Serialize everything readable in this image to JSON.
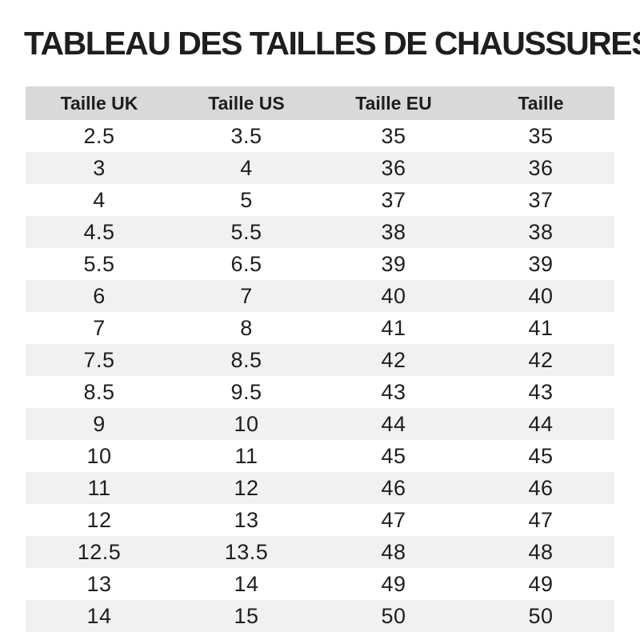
{
  "title": "TABLEAU DES TAILLES DE CHAUSSURES",
  "table": {
    "columns": [
      "Taille UK",
      "Taille US",
      "Taille EU",
      "Taille"
    ],
    "rows": [
      [
        "2.5",
        "3.5",
        "35",
        "35"
      ],
      [
        "3",
        "4",
        "36",
        "36"
      ],
      [
        "4",
        "5",
        "37",
        "37"
      ],
      [
        "4.5",
        "5.5",
        "38",
        "38"
      ],
      [
        "5.5",
        "6.5",
        "39",
        "39"
      ],
      [
        "6",
        "7",
        "40",
        "40"
      ],
      [
        "7",
        "8",
        "41",
        "41"
      ],
      [
        "7.5",
        "8.5",
        "42",
        "42"
      ],
      [
        "8.5",
        "9.5",
        "43",
        "43"
      ],
      [
        "9",
        "10",
        "44",
        "44"
      ],
      [
        "10",
        "11",
        "45",
        "45"
      ],
      [
        "11",
        "12",
        "46",
        "46"
      ],
      [
        "12",
        "13",
        "47",
        "47"
      ],
      [
        "12.5",
        "13.5",
        "48",
        "48"
      ],
      [
        "13",
        "14",
        "49",
        "49"
      ],
      [
        "14",
        "15",
        "50",
        "50"
      ]
    ]
  },
  "colors": {
    "background": "#ffffff",
    "header_bg": "#d9d9d9",
    "stripe_bg": "#f1f1f1",
    "text": "#1e1e1e"
  },
  "chart_data": {
    "type": "table",
    "title": "TABLEAU DES TAILLES DE CHAUSSURES",
    "columns": [
      "Taille UK",
      "Taille US",
      "Taille EU",
      "Taille"
    ],
    "rows": [
      [
        "2.5",
        "3.5",
        "35",
        "35"
      ],
      [
        "3",
        "4",
        "36",
        "36"
      ],
      [
        "4",
        "5",
        "37",
        "37"
      ],
      [
        "4.5",
        "5.5",
        "38",
        "38"
      ],
      [
        "5.5",
        "6.5",
        "39",
        "39"
      ],
      [
        "6",
        "7",
        "40",
        "40"
      ],
      [
        "7",
        "8",
        "41",
        "41"
      ],
      [
        "7.5",
        "8.5",
        "42",
        "42"
      ],
      [
        "8.5",
        "9.5",
        "43",
        "43"
      ],
      [
        "9",
        "10",
        "44",
        "44"
      ],
      [
        "10",
        "11",
        "45",
        "45"
      ],
      [
        "11",
        "12",
        "46",
        "46"
      ],
      [
        "12",
        "13",
        "47",
        "47"
      ],
      [
        "12.5",
        "13.5",
        "48",
        "48"
      ],
      [
        "13",
        "14",
        "49",
        "49"
      ],
      [
        "14",
        "15",
        "50",
        "50"
      ]
    ],
    "layout": {
      "striped_rows": true,
      "header_background": "#d9d9d9",
      "stripe_background": "#f1f1f1",
      "columns_equal_width": true
    }
  }
}
